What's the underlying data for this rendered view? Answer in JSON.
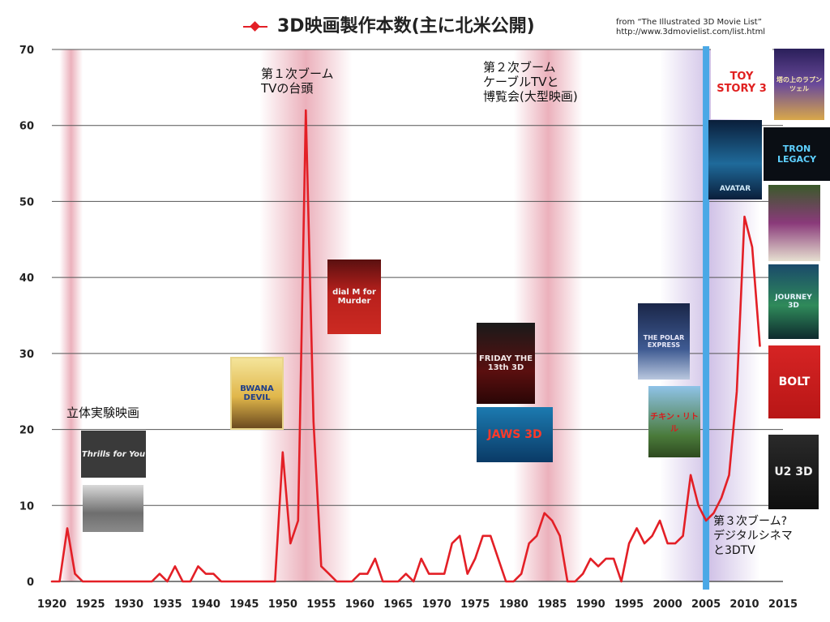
{
  "title": "3D映画製作本数(主に北米公開)",
  "source": {
    "line1": "from  “The Illustrated 3D Movie List”",
    "line2": "http://www.3dmovielist.com/list.html"
  },
  "annotations": {
    "experimental": "立体実験映画",
    "boom1": "第１次ブーム\nTVの台頭",
    "boom2": "第２次ブーム\nケーブルTVと\n博覧会(大型映画)",
    "boom3": "第３次ブーム?\nデジタルシネマ\nと3DTV"
  },
  "posters": [
    {
      "text": "Thrills for You"
    },
    {
      "text": ""
    },
    {
      "text": "BWANA DEVIL"
    },
    {
      "text": "dial M for Murder"
    },
    {
      "text": "FRIDAY THE 13th 3D"
    },
    {
      "text": "JAWS 3D"
    },
    {
      "text": "THE POLAR EXPRESS"
    },
    {
      "text": "チキン・リトル"
    },
    {
      "text": "TOY STORY 3"
    },
    {
      "text": "塔の上のラプンツェル"
    },
    {
      "text": "AVATAR"
    },
    {
      "text": "TRON LEGACY"
    },
    {
      "text": ""
    },
    {
      "text": "JOURNEY 3D"
    },
    {
      "text": "BOLT"
    },
    {
      "text": "U2 3D"
    }
  ],
  "colors": {
    "line": "#e31f26",
    "band": "#e8a3b0",
    "digital_band": "#c9b8e3",
    "marker_2005": "#4aa8e6",
    "grid": "#555555"
  },
  "chart_data": {
    "type": "line",
    "title": "3D映画製作本数(主に北米公開)",
    "xlabel": "",
    "ylabel": "",
    "xlim": [
      1920,
      2015
    ],
    "ylim": [
      0,
      70
    ],
    "x_ticks": [
      1920,
      1925,
      1930,
      1935,
      1940,
      1945,
      1950,
      1955,
      1960,
      1965,
      1970,
      1975,
      1980,
      1985,
      1990,
      1995,
      2000,
      2005,
      2010,
      2015
    ],
    "y_ticks": [
      0,
      10,
      20,
      30,
      40,
      50,
      60,
      70
    ],
    "grid": true,
    "vertical_marker_year": 2005,
    "highlight_periods": [
      [
        1921,
        1924
      ],
      [
        1947,
        1959
      ],
      [
        1980,
        1989
      ],
      [
        1999,
        2012
      ]
    ],
    "series": [
      {
        "name": "3D映画製作本数(主に北米公開)",
        "x": [
          1920,
          1921,
          1922,
          1923,
          1924,
          1925,
          1926,
          1927,
          1928,
          1929,
          1930,
          1931,
          1932,
          1933,
          1934,
          1935,
          1936,
          1937,
          1938,
          1939,
          1940,
          1941,
          1942,
          1943,
          1944,
          1945,
          1946,
          1947,
          1948,
          1949,
          1950,
          1951,
          1952,
          1953,
          1954,
          1955,
          1956,
          1957,
          1958,
          1959,
          1960,
          1961,
          1962,
          1963,
          1964,
          1965,
          1966,
          1967,
          1968,
          1969,
          1970,
          1971,
          1972,
          1973,
          1974,
          1975,
          1976,
          1977,
          1978,
          1979,
          1980,
          1981,
          1982,
          1983,
          1984,
          1985,
          1986,
          1987,
          1988,
          1989,
          1990,
          1991,
          1992,
          1993,
          1994,
          1995,
          1996,
          1997,
          1998,
          1999,
          2000,
          2001,
          2002,
          2003,
          2004,
          2005,
          2006,
          2007,
          2008,
          2009,
          2010,
          2011,
          2012
        ],
        "values": [
          0,
          0,
          7,
          1,
          0,
          0,
          0,
          0,
          0,
          0,
          0,
          0,
          0,
          0,
          1,
          0,
          2,
          0,
          0,
          2,
          1,
          1,
          0,
          0,
          0,
          0,
          0,
          0,
          0,
          0,
          17,
          5,
          8,
          62,
          21,
          2,
          1,
          0,
          0,
          0,
          1,
          1,
          3,
          0,
          0,
          0,
          1,
          0,
          3,
          1,
          1,
          1,
          5,
          6,
          1,
          3,
          6,
          6,
          3,
          0,
          0,
          1,
          5,
          6,
          9,
          8,
          6,
          0,
          0,
          1,
          3,
          2,
          3,
          3,
          0,
          5,
          7,
          5,
          6,
          8,
          5,
          5,
          6,
          14,
          10,
          8,
          9,
          11,
          14,
          25,
          48,
          44,
          31
        ]
      }
    ]
  }
}
